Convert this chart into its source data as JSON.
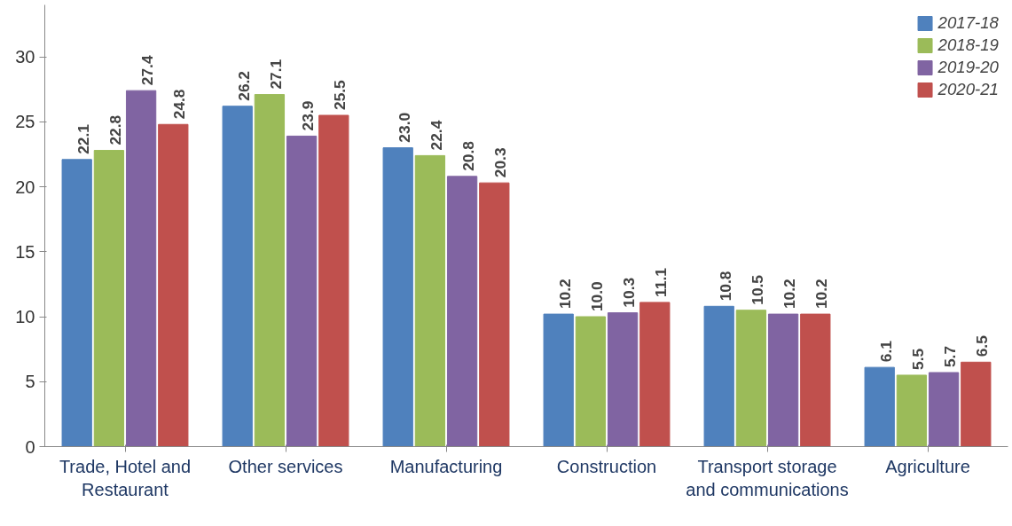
{
  "chart_data": {
    "type": "bar",
    "categories": [
      "Trade, Hotel and Restaurant",
      "Other services",
      "Manufacturing",
      "Construction",
      "Transport storage and communications",
      "Agriculture"
    ],
    "series": [
      {
        "name": "2017-18",
        "color": "#4f81bd",
        "values": [
          22.1,
          26.2,
          23,
          10.2,
          10.8,
          6.1
        ],
        "value_labels": [
          "22.1",
          "26.2",
          "23.0",
          "10.2",
          "10.8",
          "6.1"
        ]
      },
      {
        "name": "2018-19",
        "color": "#9bbb59",
        "values": [
          22.8,
          27.1,
          22.4,
          10,
          10.5,
          5.5
        ],
        "value_labels": [
          "22.8",
          "27.1",
          "22.4",
          "10.0",
          "10.5",
          "5.5"
        ]
      },
      {
        "name": "2019-20",
        "color": "#8064a2",
        "values": [
          27.4,
          23.9,
          20.8,
          10.3,
          10.2,
          5.7
        ],
        "value_labels": [
          "27.4",
          "23.9",
          "20.8",
          "10.3",
          "10.2",
          "5.7"
        ]
      },
      {
        "name": "2020-21",
        "color": "#c0504d",
        "values": [
          24.8,
          25.5,
          20.3,
          11.1,
          10.2,
          6.5
        ],
        "value_labels": [
          "24.8",
          "25.5",
          "20.3",
          "11.1",
          "10.2",
          "6.5"
        ]
      }
    ],
    "ylim": [
      0,
      34
    ],
    "yticks": [
      0,
      5,
      10,
      15,
      20,
      25,
      30
    ],
    "grid": false,
    "legend": "top right"
  }
}
